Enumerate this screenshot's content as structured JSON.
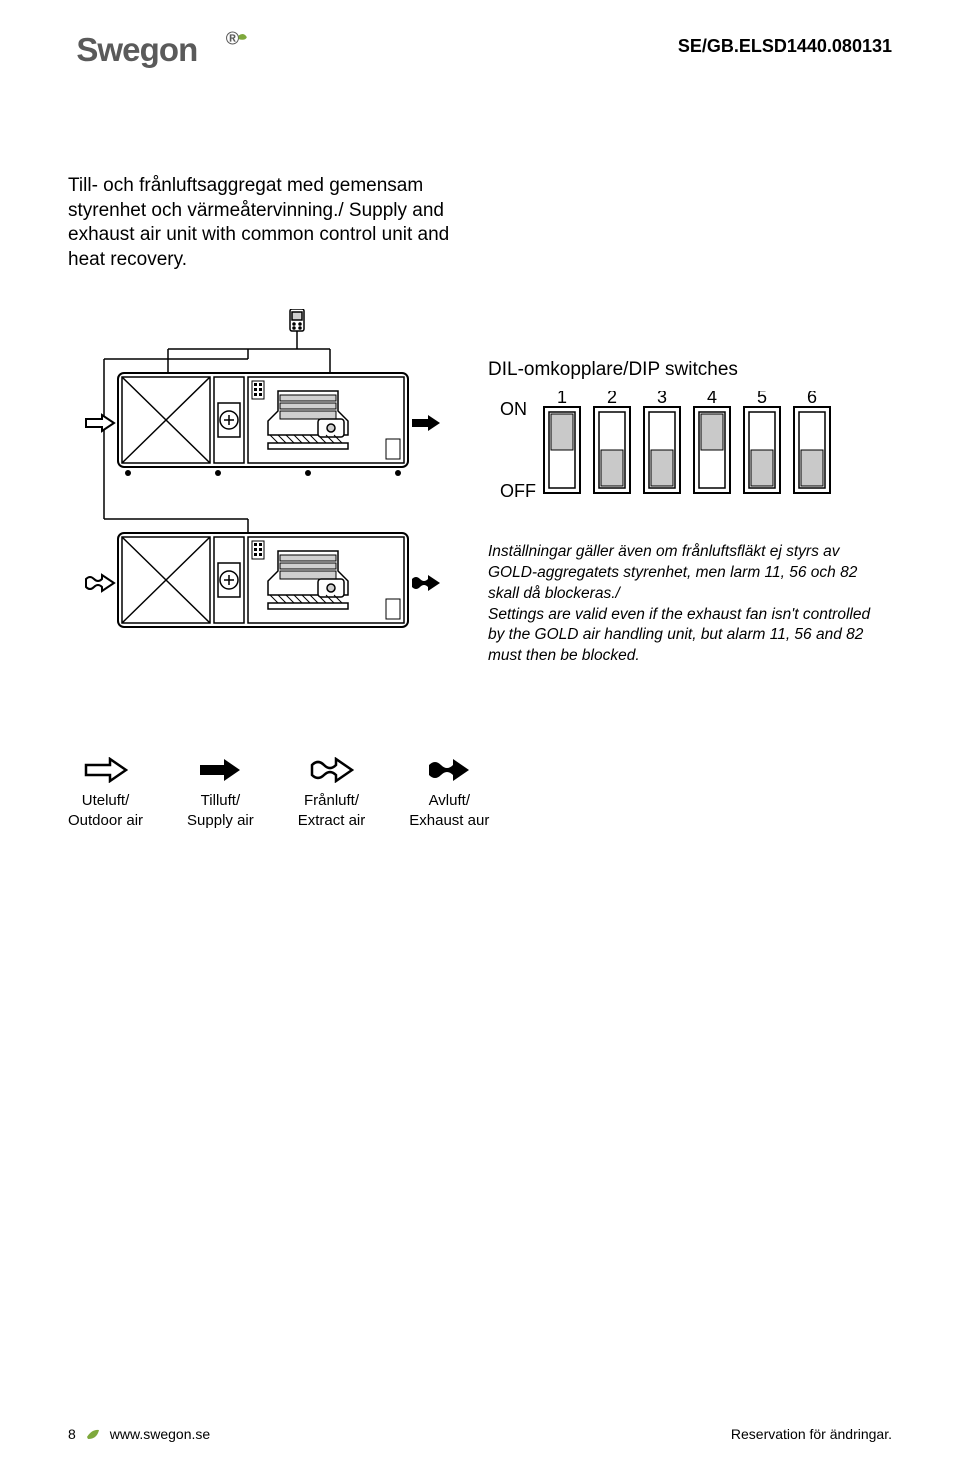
{
  "header": {
    "doc_id": "SE/GB.ELSD1440.080131"
  },
  "intro": {
    "text_sv": "Till- och frånluftsaggregat med gemensam styrenhet och värmeåtervinning./",
    "text_en": "Supply and exhaust air unit with common control unit and heat recovery."
  },
  "dip": {
    "title": "DIL-omkopplare/DIP switches",
    "on_label": "ON",
    "off_label": "OFF",
    "switches": [
      {
        "num": "1",
        "state": "on"
      },
      {
        "num": "2",
        "state": "off"
      },
      {
        "num": "3",
        "state": "off"
      },
      {
        "num": "4",
        "state": "on"
      },
      {
        "num": "5",
        "state": "off"
      },
      {
        "num": "6",
        "state": "off"
      }
    ],
    "colors": {
      "frame": "#000",
      "fill": "#fff",
      "slider": "#c9c9c9"
    }
  },
  "note": {
    "sv": "Inställningar gäller även om frånluftsfläkt ej styrs av GOLD-aggregatets styrenhet, men larm 11, 56 och 82 skall då blockeras./",
    "en": "Settings are valid even if the exhaust fan isn't controlled by the GOLD air handling unit, but alarm 11, 56 and 82 must then be blocked."
  },
  "legend": {
    "items": [
      {
        "key": "outdoor",
        "line1": "Uteluft/",
        "line2": "Outdoor air"
      },
      {
        "key": "supply",
        "line1": "Tilluft/",
        "line2": "Supply air"
      },
      {
        "key": "extract",
        "line1": "Frånluft/",
        "line2": "Extract air"
      },
      {
        "key": "exhaust",
        "line1": "Avluft/",
        "line2": "Exhaust aur"
      }
    ]
  },
  "footer": {
    "page": "8",
    "url": "www.swegon.se",
    "right": "Reservation för ändringar."
  },
  "colors": {
    "brand_grey": "#5a5a5a",
    "leaf_green": "#7ea83c",
    "text": "#000000",
    "line": "#000000",
    "unit_fill": "#ffffff",
    "unit_grey": "#d0d0d0"
  }
}
